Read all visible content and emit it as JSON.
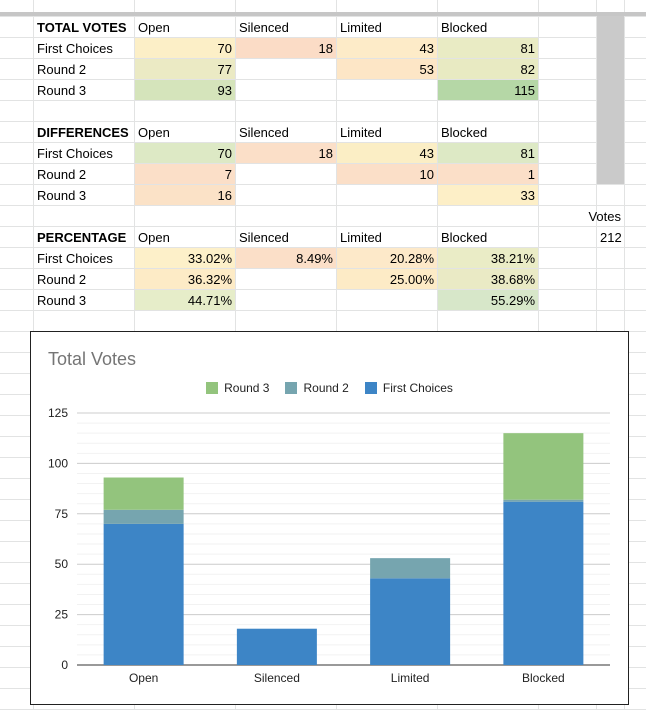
{
  "sheet": {
    "sections": [
      {
        "title": "TOTAL VOTES",
        "columns": [
          "Open",
          "Silenced",
          "Limited",
          "Blocked"
        ],
        "rows": [
          {
            "label": "First Choices",
            "values": [
              "70",
              "18",
              "43",
              "81"
            ]
          },
          {
            "label": "Round 2",
            "values": [
              "77",
              "",
              "53",
              "82"
            ]
          },
          {
            "label": "Round 3",
            "values": [
              "93",
              "",
              "",
              "115"
            ]
          }
        ]
      },
      {
        "title": "DIFFERENCES",
        "columns": [
          "Open",
          "Silenced",
          "Limited",
          "Blocked"
        ],
        "rows": [
          {
            "label": "First Choices",
            "values": [
              "70",
              "18",
              "43",
              "81"
            ]
          },
          {
            "label": "Round 2",
            "values": [
              "7",
              "",
              "10",
              "1"
            ]
          },
          {
            "label": "Round 3",
            "values": [
              "16",
              "",
              "",
              "33"
            ]
          }
        ]
      },
      {
        "title": "PERCENTAGE",
        "columns": [
          "Open",
          "Silenced",
          "Limited",
          "Blocked"
        ],
        "rows": [
          {
            "label": "First Choices",
            "values": [
              "33.02%",
              "8.49%",
              "20.28%",
              "38.21%"
            ]
          },
          {
            "label": "Round 2",
            "values": [
              "36.32%",
              "",
              "25.00%",
              "38.68%"
            ]
          },
          {
            "label": "Round 3",
            "values": [
              "44.71%",
              "",
              "",
              "55.29%"
            ]
          }
        ]
      }
    ],
    "votes_label": "Votes",
    "votes_value": "212",
    "cell_colors": {
      "total": [
        [
          "#fcefc7",
          "#fbdcc6",
          "#fdebc8",
          "#e9ebc4"
        ],
        [
          "#ebeac4",
          "",
          "#fde6c6",
          "#e8eac2"
        ],
        [
          "#d5e4bb",
          "",
          "",
          "#b5d7a6"
        ]
      ],
      "diff": [
        [
          "#dde9c5",
          "#fbdfc8",
          "#fbeec5",
          "#dde9c5"
        ],
        [
          "#fbdfc8",
          "",
          "#fbdfc8",
          "#fbdfc8"
        ],
        [
          "#fbe2c7",
          "",
          "",
          "#fdefc7"
        ]
      ],
      "pct": [
        [
          "#fdf0c9",
          "#fbdfc8",
          "#fde9c9",
          "#eaecc6"
        ],
        [
          "#fdebc6",
          "",
          "#fdebc6",
          "#eaeac5"
        ],
        [
          "#e6edc9",
          "",
          "",
          "#d7e7c9"
        ]
      ]
    }
  },
  "chart_data": {
    "type": "bar",
    "stacked": true,
    "title": "Total Votes",
    "categories": [
      "Open",
      "Silenced",
      "Limited",
      "Blocked"
    ],
    "series": [
      {
        "name": "First Choices",
        "values": [
          70,
          18,
          43,
          81
        ],
        "color": "#3d85c6"
      },
      {
        "name": "Round 2",
        "values": [
          7,
          0,
          10,
          1
        ],
        "color": "#76a5af"
      },
      {
        "name": "Round 3",
        "values": [
          16,
          0,
          0,
          33
        ],
        "color": "#93c47d"
      }
    ],
    "legend_order": [
      "Round 3",
      "Round 2",
      "First Choices"
    ],
    "legend_position": "top",
    "ylim": [
      0,
      125
    ],
    "yticks": [
      0,
      25,
      50,
      75,
      100,
      125
    ],
    "grid": true
  }
}
